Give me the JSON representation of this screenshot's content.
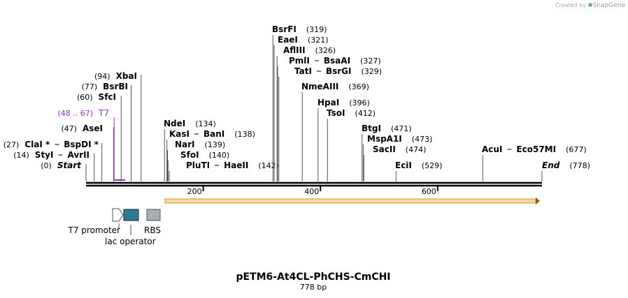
{
  "header": {
    "credit": "Created by",
    "brand": "SnapGene"
  },
  "map": {
    "length": 778,
    "title": "pETM6-At4CL-PhCHS-CmCHI",
    "subtitle": "778 bp",
    "ruler_ticks": [
      200,
      400,
      600
    ],
    "t7": {
      "name": "T7",
      "start": 48,
      "end": 67,
      "range_label": "(48 .. 67)"
    },
    "enzymes": [
      {
        "names": [
          "XbaI"
        ],
        "site": 94,
        "site_label": "(94)"
      },
      {
        "names": [
          "BsrBI"
        ],
        "site": 77,
        "site_label": "(77)"
      },
      {
        "names": [
          "SfcI"
        ],
        "site": 60,
        "site_label": "(60)"
      },
      {
        "names": [
          "AseI"
        ],
        "site": 47,
        "site_label": "(47)"
      },
      {
        "names": [
          "ClaI *",
          "BspDI *"
        ],
        "site": 27,
        "site_label": "(27)"
      },
      {
        "names": [
          "StyI",
          "AvrII"
        ],
        "site": 14,
        "site_label": "(14)"
      },
      {
        "names": [
          "Start"
        ],
        "site": 0,
        "site_label": "(0)"
      },
      {
        "names": [
          "NdeI"
        ],
        "site": 134,
        "site_label": "(134)"
      },
      {
        "names": [
          "KasI",
          "BanI"
        ],
        "site": 138,
        "site_label": "(138)"
      },
      {
        "names": [
          "NarI"
        ],
        "site": 139,
        "site_label": "(139)"
      },
      {
        "names": [
          "SfoI"
        ],
        "site": 140,
        "site_label": "(140)"
      },
      {
        "names": [
          "PluTI",
          "HaeII"
        ],
        "site": 142,
        "site_label": "(142)"
      },
      {
        "names": [
          "BsrFI"
        ],
        "site": 319,
        "site_label": "(319)"
      },
      {
        "names": [
          "EaeI"
        ],
        "site": 321,
        "site_label": "(321)"
      },
      {
        "names": [
          "AflIII"
        ],
        "site": 326,
        "site_label": "(326)"
      },
      {
        "names": [
          "PmlI",
          "BsaAI"
        ],
        "site": 327,
        "site_label": "(327)"
      },
      {
        "names": [
          "TatI",
          "BsrGI"
        ],
        "site": 329,
        "site_label": "(329)"
      },
      {
        "names": [
          "NmeAIII"
        ],
        "site": 369,
        "site_label": "(369)"
      },
      {
        "names": [
          "HpaI"
        ],
        "site": 396,
        "site_label": "(396)"
      },
      {
        "names": [
          "TsoI"
        ],
        "site": 412,
        "site_label": "(412)"
      },
      {
        "names": [
          "BtgI"
        ],
        "site": 471,
        "site_label": "(471)"
      },
      {
        "names": [
          "MspA1I"
        ],
        "site": 473,
        "site_label": "(473)"
      },
      {
        "names": [
          "SacII"
        ],
        "site": 474,
        "site_label": "(474)"
      },
      {
        "names": [
          "EciI"
        ],
        "site": 529,
        "site_label": "(529)"
      },
      {
        "names": [
          "AcuI",
          "Eco57MI"
        ],
        "site": 677,
        "site_label": "(677)"
      },
      {
        "names": [
          "End"
        ],
        "site": 778,
        "site_label": "(778)"
      }
    ],
    "features": {
      "t7_promoter": "T7 promoter",
      "rbs": "RBS",
      "lac_operator": "lac operator"
    }
  }
}
